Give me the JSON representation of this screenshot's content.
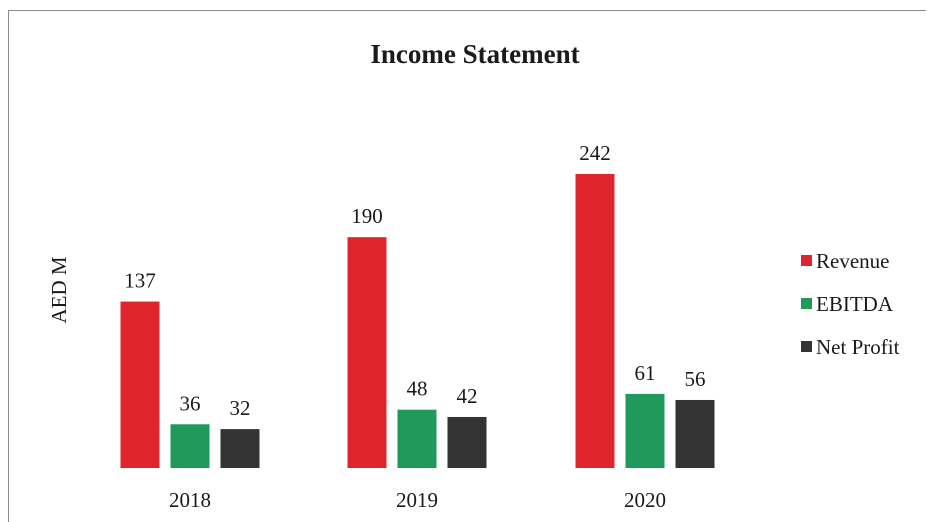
{
  "chart_data": {
    "type": "bar",
    "title": "Income Statement",
    "ylabel": "AED M",
    "xlabel": "",
    "categories": [
      "2018",
      "2019",
      "2020"
    ],
    "series": [
      {
        "name": "Revenue",
        "color": "#e0242e",
        "values": [
          137,
          190,
          242
        ]
      },
      {
        "name": "EBITDA",
        "color": "#1f9a5a",
        "values": [
          36,
          48,
          61
        ]
      },
      {
        "name": "Net Profit",
        "color": "#333333",
        "values": [
          32,
          42,
          56
        ]
      }
    ],
    "ylim": [
      0,
      242
    ],
    "grid": false,
    "legend": "right",
    "data_labels": true
  }
}
